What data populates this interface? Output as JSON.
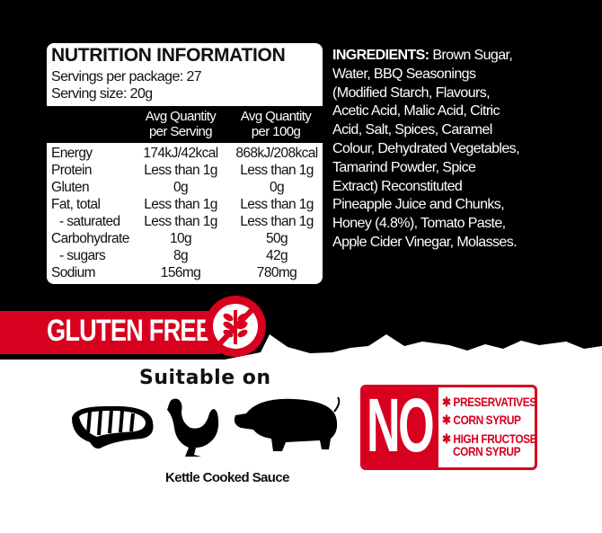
{
  "nutrition": {
    "title": "NUTRITION INFORMATION",
    "servings_per_package": "Servings per package: 27",
    "serving_size": "Serving size: 20g",
    "col1_line1": "Avg Quantity",
    "col1_line2": "per Serving",
    "col2_line1": "Avg Quantity",
    "col2_line2": "per 100g",
    "rows": [
      {
        "name": "Energy",
        "per_serving": "174kJ/42kcal",
        "per_100g": "868kJ/208kcal"
      },
      {
        "name": "Protein",
        "per_serving": "Less than 1g",
        "per_100g": "Less than 1g"
      },
      {
        "name": "Gluten",
        "per_serving": "0g",
        "per_100g": "0g"
      },
      {
        "name": "Fat, total",
        "per_serving": "Less than 1g",
        "per_100g": "Less than 1g"
      },
      {
        "name": "- saturated",
        "per_serving": "Less than 1g",
        "per_100g": "Less than 1g"
      },
      {
        "name": "Carbohydrate",
        "per_serving": "10g",
        "per_100g": "50g"
      },
      {
        "name": "- sugars",
        "per_serving": "8g",
        "per_100g": "42g"
      },
      {
        "name": "Sodium",
        "per_serving": "156mg",
        "per_100g": "780mg"
      }
    ]
  },
  "ingredients": {
    "label": "INGREDIENTS:",
    "lines": [
      "Brown Sugar,",
      "Water, BBQ Seasonings",
      "(Modified Starch, Flavours,",
      "Acetic Acid, Malic Acid, Citric",
      "Acid, Salt, Spices, Caramel",
      "Colour, Dehydrated Vegetables,",
      "Tamarind Powder, Spice",
      "Extract) Reconstituted",
      "Pineapple Juice and Chunks,",
      "Honey (4.8%), Tomato Paste,",
      "Apple Cider Vinegar, Molasses."
    ]
  },
  "gluten_free": {
    "label": "GLUTEN FREE",
    "icon": "no-wheat-icon"
  },
  "suitable": {
    "label": "Suitable on",
    "icons": [
      "steak-icon",
      "chicken-icon",
      "pig-icon"
    ],
    "caption": "Kettle Cooked Sauce"
  },
  "no_badge": {
    "label": "NO",
    "items": [
      "PRESERVATIVES",
      "CORN SYRUP",
      "HIGH FRUCTOSE",
      "CORN SYRUP"
    ]
  },
  "colors": {
    "red": "#d7001f",
    "black": "#000000"
  }
}
